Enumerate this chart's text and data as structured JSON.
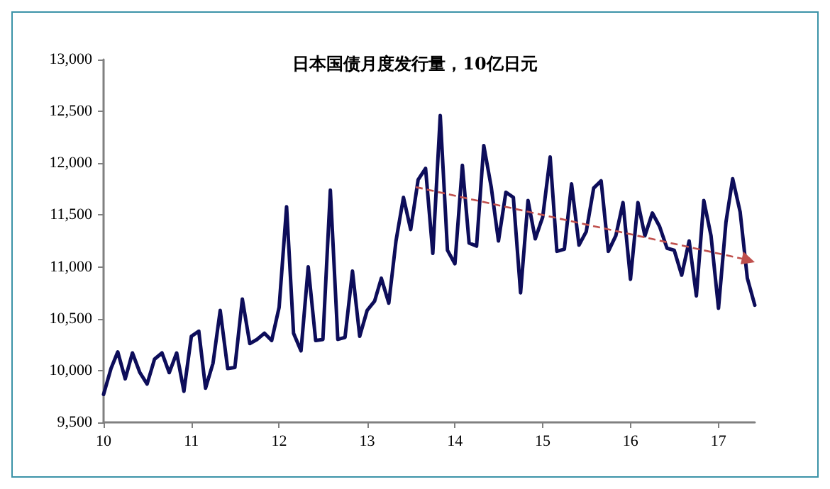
{
  "chart_data": {
    "type": "line",
    "title": "日本国债月度发行量，10亿日元",
    "x": [
      "2010-01",
      "2010-02",
      "2010-03",
      "2010-04",
      "2010-05",
      "2010-06",
      "2010-07",
      "2010-08",
      "2010-09",
      "2010-10",
      "2010-11",
      "2010-12",
      "2011-01",
      "2011-02",
      "2011-03",
      "2011-04",
      "2011-05",
      "2011-06",
      "2011-07",
      "2011-08",
      "2011-09",
      "2011-10",
      "2011-11",
      "2011-12",
      "2012-01",
      "2012-02",
      "2012-03",
      "2012-04",
      "2012-05",
      "2012-06",
      "2012-07",
      "2012-08",
      "2012-09",
      "2012-10",
      "2012-11",
      "2012-12",
      "2013-01",
      "2013-02",
      "2013-03",
      "2013-04",
      "2013-05",
      "2013-06",
      "2013-07",
      "2013-08",
      "2013-09",
      "2013-10",
      "2013-11",
      "2013-12",
      "2014-01",
      "2014-02",
      "2014-03",
      "2014-04",
      "2014-05",
      "2014-06",
      "2014-07",
      "2014-08",
      "2014-09",
      "2014-10",
      "2014-11",
      "2014-12",
      "2015-01",
      "2015-02",
      "2015-03",
      "2015-04",
      "2015-05",
      "2015-06",
      "2015-07",
      "2015-08",
      "2015-09",
      "2015-10",
      "2015-11",
      "2015-12",
      "2016-01",
      "2016-02",
      "2016-03",
      "2016-04",
      "2016-05",
      "2016-06",
      "2016-07",
      "2016-08",
      "2016-09",
      "2016-10",
      "2016-11",
      "2016-12",
      "2017-01",
      "2017-02",
      "2017-03",
      "2017-04",
      "2017-05",
      "2017-06"
    ],
    "series": [
      {
        "color": "#0d0d5a",
        "values": [
          9770,
          10020,
          10180,
          9920,
          10170,
          9980,
          9870,
          10110,
          10170,
          9980,
          10170,
          9800,
          10330,
          10380,
          9830,
          10070,
          10580,
          10020,
          10030,
          10690,
          10260,
          10300,
          10360,
          10290,
          10610,
          11580,
          10360,
          10190,
          11000,
          10290,
          10300,
          11740,
          10300,
          10320,
          10960,
          10330,
          10580,
          10670,
          10890,
          10650,
          11250,
          11670,
          11360,
          11840,
          11950,
          11130,
          12460,
          11160,
          11030,
          11980,
          11230,
          11200,
          12170,
          11770,
          11250,
          11720,
          11670,
          10750,
          11640,
          11270,
          11480,
          12060,
          11150,
          11170,
          11800,
          11210,
          11340,
          11760,
          11830,
          11150,
          11300,
          11620,
          10880,
          11620,
          11300,
          11520,
          11390,
          11180,
          11160,
          10920,
          11250,
          10720,
          11640,
          11300,
          10600,
          11430,
          11850,
          11530,
          10890,
          10630
        ]
      }
    ],
    "xlim": [
      "2010-01",
      "2017-06"
    ],
    "xticks": [
      {
        "value": "2010-01",
        "label": "10"
      },
      {
        "value": "2011-01",
        "label": "11"
      },
      {
        "value": "2012-01",
        "label": "12"
      },
      {
        "value": "2013-01",
        "label": "13"
      },
      {
        "value": "2014-01",
        "label": "14"
      },
      {
        "value": "2015-01",
        "label": "15"
      },
      {
        "value": "2016-01",
        "label": "16"
      },
      {
        "value": "2017-01",
        "label": "17"
      }
    ],
    "ylim": [
      9500,
      13000
    ],
    "yticks": [
      {
        "value": 9500,
        "label": "9,500"
      },
      {
        "value": 10000,
        "label": "10,000"
      },
      {
        "value": 10500,
        "label": "10,500"
      },
      {
        "value": 11000,
        "label": "11,000"
      },
      {
        "value": 11500,
        "label": "11,500"
      },
      {
        "value": 12000,
        "label": "12,000"
      },
      {
        "value": 12500,
        "label": "12,500"
      },
      {
        "value": 13000,
        "label": "13,000"
      }
    ],
    "grid": false,
    "marker": "none",
    "line_style": "solid"
  }
}
